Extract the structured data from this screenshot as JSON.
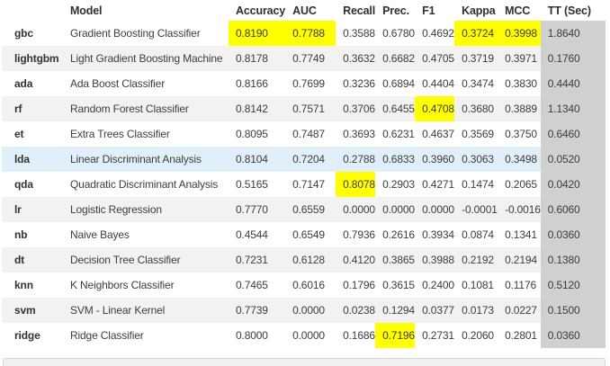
{
  "table": {
    "index_header": "",
    "columns": [
      "Model",
      "Accuracy",
      "AUC",
      "Recall",
      "Prec.",
      "F1",
      "Kappa",
      "MCC",
      "TT (Sec)"
    ],
    "rows": [
      {
        "id": "gbc",
        "model": "Gradient Boosting Classifier",
        "values": [
          "0.8190",
          "0.7788",
          "0.3588",
          "0.6780",
          "0.4692",
          "0.3724",
          "0.3998",
          "1.8640"
        ],
        "highlight": [
          0,
          1,
          5,
          6
        ],
        "selected": false
      },
      {
        "id": "lightgbm",
        "model": "Light Gradient Boosting Machine",
        "values": [
          "0.8178",
          "0.7749",
          "0.3632",
          "0.6682",
          "0.4705",
          "0.3719",
          "0.3971",
          "0.1760"
        ],
        "highlight": [],
        "selected": false
      },
      {
        "id": "ada",
        "model": "Ada Boost Classifier",
        "values": [
          "0.8166",
          "0.7699",
          "0.3236",
          "0.6894",
          "0.4404",
          "0.3474",
          "0.3830",
          "0.4440"
        ],
        "highlight": [],
        "selected": false
      },
      {
        "id": "rf",
        "model": "Random Forest Classifier",
        "values": [
          "0.8142",
          "0.7571",
          "0.3706",
          "0.6455",
          "0.4708",
          "0.3680",
          "0.3889",
          "1.1340"
        ],
        "highlight": [
          4
        ],
        "selected": false
      },
      {
        "id": "et",
        "model": "Extra Trees Classifier",
        "values": [
          "0.8095",
          "0.7487",
          "0.3693",
          "0.6231",
          "0.4637",
          "0.3569",
          "0.3750",
          "0.6460"
        ],
        "highlight": [],
        "selected": false
      },
      {
        "id": "lda",
        "model": "Linear Discriminant Analysis",
        "values": [
          "0.8104",
          "0.7204",
          "0.2788",
          "0.6833",
          "0.3960",
          "0.3063",
          "0.3498",
          "0.0520"
        ],
        "highlight": [],
        "selected": true
      },
      {
        "id": "qda",
        "model": "Quadratic Discriminant Analysis",
        "values": [
          "0.5165",
          "0.7147",
          "0.8078",
          "0.2903",
          "0.4271",
          "0.1474",
          "0.2065",
          "0.0420"
        ],
        "highlight": [
          2
        ],
        "selected": false
      },
      {
        "id": "lr",
        "model": "Logistic Regression",
        "values": [
          "0.7770",
          "0.6559",
          "0.0000",
          "0.0000",
          "0.0000",
          "-0.0001",
          "-0.0016",
          "0.6060"
        ],
        "highlight": [],
        "selected": false
      },
      {
        "id": "nb",
        "model": "Naive Bayes",
        "values": [
          "0.4544",
          "0.6549",
          "0.7936",
          "0.2616",
          "0.3934",
          "0.0874",
          "0.1341",
          "0.0360"
        ],
        "highlight": [],
        "selected": false
      },
      {
        "id": "dt",
        "model": "Decision Tree Classifier",
        "values": [
          "0.7231",
          "0.6128",
          "0.4120",
          "0.3865",
          "0.3988",
          "0.2192",
          "0.2194",
          "0.1380"
        ],
        "highlight": [],
        "selected": false
      },
      {
        "id": "knn",
        "model": "K Neighbors Classifier",
        "values": [
          "0.7465",
          "0.6016",
          "0.1796",
          "0.3615",
          "0.2400",
          "0.1081",
          "0.1176",
          "0.5120"
        ],
        "highlight": [],
        "selected": false
      },
      {
        "id": "svm",
        "model": "SVM - Linear Kernel",
        "values": [
          "0.7739",
          "0.0000",
          "0.0238",
          "0.1294",
          "0.0377",
          "0.0173",
          "0.0227",
          "0.1500"
        ],
        "highlight": [],
        "selected": false
      },
      {
        "id": "ridge",
        "model": "Ridge Classifier",
        "values": [
          "0.8000",
          "0.0000",
          "0.1686",
          "0.7196",
          "0.2731",
          "0.2060",
          "0.2801",
          "0.0360"
        ],
        "highlight": [
          3
        ],
        "selected": false
      }
    ]
  },
  "colors": {
    "highlight_best": "#ffff00",
    "tt_column_bg": "#d0d0d0",
    "selected_row_bg": "#e1eff9",
    "stripe_row_bg": "#f2f2f2",
    "text": "#3d3d3d"
  }
}
